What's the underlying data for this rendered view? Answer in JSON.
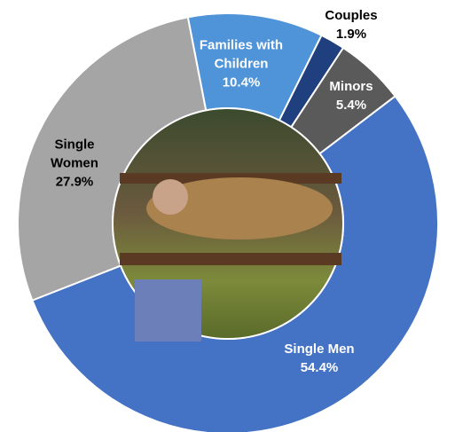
{
  "chart_data": {
    "type": "pie",
    "categories": [
      "Families with Children",
      "Couples",
      "Minors",
      "Single Men",
      "Single Women"
    ],
    "values": [
      10.4,
      1.9,
      5.4,
      54.4,
      27.9
    ],
    "value_labels": [
      "10.4%",
      "1.9%",
      "5.4%",
      "54.4%",
      "27.9%"
    ],
    "colors": [
      "#4f93d8",
      "#1f3f7f",
      "#5a5a5a",
      "#4472c4",
      "#a5a5a5"
    ]
  }
}
